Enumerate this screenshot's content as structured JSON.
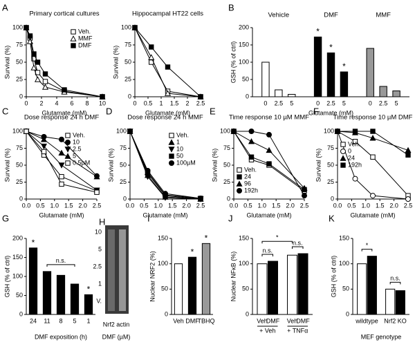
{
  "chart_data": [
    {
      "type": "line",
      "panel": "A",
      "title": "Primary cortical cultures",
      "xlabel": "Glutamate (mM)",
      "ylabel": "Survival (%)",
      "x": [
        0,
        0.5,
        1,
        1.5,
        2.5,
        5,
        10
      ],
      "xlim": [
        0,
        10
      ],
      "xticks": [
        0,
        2,
        4,
        6,
        8,
        10
      ],
      "ylim": [
        0,
        100
      ],
      "yticks": [
        0,
        25,
        50,
        75,
        100
      ],
      "legend": "upper right",
      "series": [
        {
          "name": "Veh.",
          "marker": "open-square",
          "color": "#000000",
          "values": [
            100,
            85,
            55,
            35,
            22,
            8,
            0
          ]
        },
        {
          "name": "MMF",
          "marker": "open-triangle",
          "color": "#000000",
          "values": [
            100,
            80,
            42,
            25,
            14,
            7,
            0
          ]
        },
        {
          "name": "DMF",
          "marker": "filled-square",
          "color": "#000000",
          "values": [
            100,
            88,
            62,
            50,
            33,
            10,
            0
          ]
        }
      ]
    },
    {
      "type": "line",
      "title": "Hippocampal HT22 cells",
      "xlabel": "Glutamate (mM)",
      "ylabel": "Survival (%)",
      "x": [
        0,
        0.625,
        1.25,
        2.5
      ],
      "xlim": [
        0,
        2.5
      ],
      "xticks": [
        0,
        0.5,
        1,
        1.5,
        2,
        2.5
      ],
      "ylim": [
        0,
        100
      ],
      "yticks": [
        0,
        25,
        50,
        75,
        100
      ],
      "series": [
        {
          "name": "Veh.",
          "marker": "open-square",
          "color": "#000000",
          "values": [
            100,
            50,
            8,
            0
          ]
        },
        {
          "name": "MMF",
          "marker": "open-triangle",
          "color": "#000000",
          "values": [
            100,
            57,
            5,
            0
          ]
        },
        {
          "name": "DMF",
          "marker": "filled-square",
          "color": "#000000",
          "values": [
            100,
            72,
            43,
            0
          ]
        }
      ]
    },
    {
      "type": "bar",
      "panel": "B",
      "grouping": "by-series",
      "xlabel": "Glutamate (mM)",
      "ylabel": "GSH (% of ctrl)",
      "ylim": [
        0,
        200
      ],
      "yticks": [
        0,
        50,
        100,
        150,
        200
      ],
      "categories": [
        "0",
        "2.5",
        "5"
      ],
      "series": [
        {
          "name": "Vehicle",
          "color": "#ffffff",
          "values": [
            100,
            20,
            7
          ]
        },
        {
          "name": "DMF",
          "color": "#000000",
          "values": [
            173,
            127,
            72
          ],
          "sig": [
            "*",
            "*",
            "*"
          ]
        },
        {
          "name": "MMF",
          "color": "#999999",
          "values": [
            140,
            30,
            17
          ]
        }
      ]
    },
    {
      "type": "line",
      "panel": "C",
      "title": "Dose response 24 h DMF",
      "xlabel": "Glutamate (mM)",
      "ylabel": "Survival (%)",
      "x": [
        0,
        0.625,
        1.25,
        2.5
      ],
      "xlim": [
        0,
        2.5
      ],
      "xticks": [
        {
          "value": 0,
          "label": "0.0"
        },
        0.5,
        {
          "value": 1,
          "label": "1.0"
        },
        1.5,
        {
          "value": 2,
          "label": "2.0"
        },
        2.5
      ],
      "ylim": [
        0,
        100
      ],
      "yticks": [
        0,
        25,
        50,
        75,
        100
      ],
      "legend": "upper right",
      "series": [
        {
          "name": "Veh.",
          "marker": "open-square",
          "color": "#000000",
          "values": [
            100,
            65,
            33,
            12
          ]
        },
        {
          "name": "10",
          "marker": "filled-circle",
          "color": "#000000",
          "values": [
            100,
            92,
            88,
            34
          ]
        },
        {
          "name": "2.5",
          "marker": "filled-down",
          "color": "#000000",
          "values": [
            100,
            78,
            50,
            13
          ]
        },
        {
          "name": "5",
          "marker": "filled-triangle",
          "color": "#000000",
          "values": [
            100,
            88,
            68,
            33
          ]
        },
        {
          "name": "0.5µM",
          "marker": "open-square",
          "color": "#000000",
          "values": [
            100,
            70,
            22,
            10
          ]
        }
      ]
    },
    {
      "type": "line",
      "panel": "D",
      "title": "Dose response 24 h MMF",
      "xlabel": "Glutamate (mM)",
      "ylabel": "Survival (%)",
      "x": [
        0,
        0.625,
        1.25,
        2.5
      ],
      "xlim": [
        0,
        2.5
      ],
      "xticks": [
        {
          "value": 0,
          "label": "0.0"
        },
        0.5,
        {
          "value": 1,
          "label": "1.0"
        },
        1.5,
        {
          "value": 2,
          "label": "2.0"
        },
        2.5
      ],
      "ylim": [
        0,
        100
      ],
      "yticks": [
        0,
        25,
        50,
        75,
        100
      ],
      "legend": "upper right",
      "series": [
        {
          "name": "Veh.",
          "marker": "open-square",
          "color": "#000000",
          "values": [
            100,
            38,
            5,
            0
          ]
        },
        {
          "name": "1",
          "marker": "filled-triangle",
          "color": "#000000",
          "values": [
            100,
            35,
            3,
            0
          ]
        },
        {
          "name": "10",
          "marker": "filled-down",
          "color": "#000000",
          "values": [
            100,
            33,
            2,
            0
          ]
        },
        {
          "name": "50",
          "marker": "filled-square",
          "color": "#000000",
          "values": [
            100,
            40,
            6,
            1
          ]
        },
        {
          "name": "100µM",
          "marker": "filled-circle",
          "color": "#000000",
          "values": [
            100,
            42,
            8,
            1
          ]
        }
      ]
    },
    {
      "type": "line",
      "panel": "E",
      "title": "Time response 10 µM MMF",
      "xlabel": "Glutamate (mM)",
      "ylabel": "Survival (%)",
      "x": [
        0,
        0.625,
        1.25,
        2.5
      ],
      "xlim": [
        0,
        2.5
      ],
      "xticks": [
        {
          "value": 0,
          "label": "0.0"
        },
        0.5,
        {
          "value": 1,
          "label": "1.0"
        },
        1.5,
        {
          "value": 2,
          "label": "2.0"
        },
        2.5
      ],
      "ylim": [
        0,
        100
      ],
      "yticks": [
        0,
        25,
        50,
        75,
        100
      ],
      "legend": "lower left",
      "series": [
        {
          "name": "Veh.",
          "marker": "open-square",
          "color": "#000000",
          "values": [
            100,
            58,
            50,
            12
          ]
        },
        {
          "name": "24",
          "marker": "filled-square",
          "color": "#000000",
          "values": [
            100,
            62,
            52,
            14
          ]
        },
        {
          "name": "96",
          "marker": "filled-triangle",
          "color": "#000000",
          "values": [
            100,
            85,
            72,
            16
          ]
        },
        {
          "name": "192h",
          "marker": "filled-circle",
          "color": "#000000",
          "values": [
            100,
            100,
            95,
            5
          ]
        }
      ]
    },
    {
      "type": "line",
      "panel": "F",
      "title": "Time response 10 µM DMF",
      "xlabel": "Glutamate (mM)",
      "ylabel": "Survival (%)",
      "x": [
        0,
        0.625,
        1.25,
        2.5
      ],
      "xlim": [
        0,
        2.5
      ],
      "xticks": [
        {
          "value": 0,
          "label": "0.0"
        },
        0.5,
        {
          "value": 1,
          "label": "1.0"
        },
        1.5,
        {
          "value": 2,
          "label": "2.0"
        },
        2.5
      ],
      "ylim": [
        0,
        100
      ],
      "yticks": [
        0,
        25,
        50,
        75,
        100
      ],
      "legend": "center left",
      "series": [
        {
          "name": "Veh.",
          "marker": "open-square",
          "color": "#000000",
          "values": [
            100,
            85,
            62,
            5
          ]
        },
        {
          "name": "0",
          "marker": "open-circle",
          "color": "#000000",
          "values": [
            100,
            30,
            5,
            0
          ]
        },
        {
          "name": "24",
          "marker": "filled-triangle",
          "color": "#000000",
          "values": [
            100,
            98,
            90,
            72
          ]
        },
        {
          "name": "192h",
          "marker": "filled-square",
          "color": "#000000",
          "values": [
            100,
            100,
            100,
            65
          ]
        }
      ]
    },
    {
      "type": "bar",
      "panel": "G",
      "xlabel": "DMF exposition (h)",
      "ylabel": "GSH (% of ctrl)",
      "ylim": [
        0,
        200
      ],
      "yticks": [
        0,
        50,
        100,
        150,
        200
      ],
      "categories": [
        "24",
        "11",
        "8",
        "5",
        "1"
      ],
      "values": [
        175,
        113,
        103,
        80,
        52
      ],
      "color": "#000000",
      "sig": [
        "*",
        null,
        null,
        null,
        "*"
      ],
      "brackets": [
        "n.s."
      ]
    },
    {
      "type": "bar",
      "panel": "I",
      "ylabel": "Nuclear NRF2 (%)",
      "ylim": [
        0,
        150
      ],
      "yticks": [
        0,
        50,
        100,
        150
      ],
      "categories": [
        "Veh",
        "DMF",
        "TBHQ"
      ],
      "values": [
        100,
        113,
        140
      ],
      "colors": [
        "#ffffff",
        "#000000",
        "#999999"
      ],
      "sig": [
        null,
        "*",
        "*"
      ]
    },
    {
      "type": "bar",
      "panel": "J",
      "ylabel": "Nuclear NFκB (%)",
      "ylim": [
        0,
        150
      ],
      "yticks": [
        0,
        50,
        100,
        150
      ],
      "categories": [
        "Veh",
        "DMF",
        "Veh",
        "DMF"
      ],
      "values": [
        100,
        105,
        117,
        120
      ],
      "colors": [
        "#ffffff",
        "#000000",
        "#ffffff",
        "#000000"
      ],
      "groups": [
        "+ Veh",
        "+ TNFα"
      ],
      "brackets": [
        "n.s.",
        "*",
        "n.s."
      ]
    },
    {
      "type": "bar",
      "panel": "K",
      "grouping": "by-category",
      "xlabel": "MEF genotype",
      "ylabel": "GSH (% of ctrl)",
      "ylim": [
        0,
        150
      ],
      "yticks": [
        0,
        50,
        100,
        150
      ],
      "categories": [
        "wildtype",
        "Nrf2 KO"
      ],
      "series": [
        {
          "color": "#ffffff",
          "values": [
            100,
            50
          ]
        },
        {
          "color": "#000000",
          "values": [
            115,
            47
          ]
        }
      ],
      "brackets": [
        "*",
        "n.s."
      ]
    }
  ],
  "blot": {
    "panel": "H",
    "lanes": [
      "10",
      "5",
      "2.5",
      "1",
      "V."
    ],
    "caption": "Nrf2 actin",
    "xlabel": "DMF (µM)"
  }
}
